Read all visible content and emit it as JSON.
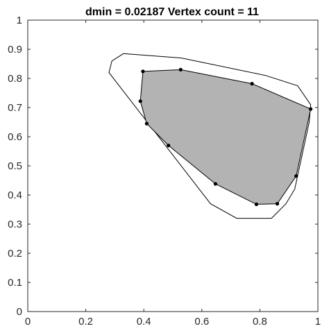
{
  "chart_data": {
    "type": "scatter",
    "title": "dmin = 0.02187     Vertex count = 11",
    "xlabel": "",
    "ylabel": "",
    "xlim": [
      0,
      1
    ],
    "ylim": [
      0,
      1
    ],
    "grid": false,
    "x_ticks": [
      0,
      0.2,
      0.4,
      0.6,
      0.8,
      1
    ],
    "x_tick_labels": [
      "0",
      "0.2",
      "0.4",
      "0.6",
      "0.8",
      "1"
    ],
    "y_ticks": [
      0,
      0.1,
      0.2,
      0.3,
      0.4,
      0.5,
      0.6,
      0.7,
      0.8,
      0.9,
      1
    ],
    "y_tick_labels": [
      "0",
      "0.1",
      "0.2",
      "0.3",
      "0.4",
      "0.5",
      "0.6",
      "0.7",
      "0.8",
      "0.9",
      "1"
    ],
    "outer_polygon": {
      "x": [
        0.33,
        0.53,
        0.82,
        0.93,
        0.975,
        0.97,
        0.92,
        0.89,
        0.84,
        0.72,
        0.63,
        0.28,
        0.29
      ],
      "y": [
        0.885,
        0.87,
        0.81,
        0.775,
        0.71,
        0.65,
        0.42,
        0.37,
        0.32,
        0.32,
        0.37,
        0.82,
        0.86
      ]
    },
    "inner_polygon": {
      "fill_color": "#b3b3b3",
      "x": [
        0.397,
        0.527,
        0.773,
        0.975,
        0.925,
        0.86,
        0.788,
        0.647,
        0.485,
        0.41,
        0.388
      ],
      "y": [
        0.824,
        0.83,
        0.782,
        0.695,
        0.465,
        0.37,
        0.368,
        0.438,
        0.57,
        0.645,
        0.722
      ]
    },
    "vertex_count": 11,
    "dmin": 0.02187
  }
}
